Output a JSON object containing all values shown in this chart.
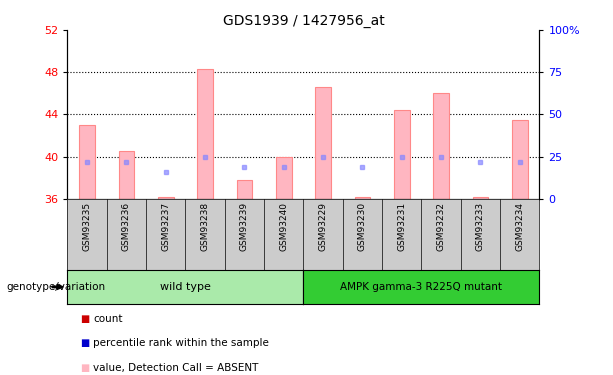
{
  "title": "GDS1939 / 1427956_at",
  "samples": [
    "GSM93235",
    "GSM93236",
    "GSM93237",
    "GSM93238",
    "GSM93239",
    "GSM93240",
    "GSM93229",
    "GSM93230",
    "GSM93231",
    "GSM93232",
    "GSM93233",
    "GSM93234"
  ],
  "bar_values": [
    43.0,
    40.5,
    36.2,
    48.3,
    37.8,
    40.0,
    46.6,
    36.2,
    44.4,
    46.0,
    36.2,
    43.5
  ],
  "rank_values": [
    39.5,
    39.5,
    38.5,
    40.0,
    39.0,
    39.0,
    40.0,
    39.0,
    40.0,
    40.0,
    39.5,
    39.5
  ],
  "ylim_left": [
    36,
    52
  ],
  "ylim_right": [
    0,
    100
  ],
  "yticks_left": [
    36,
    40,
    44,
    48,
    52
  ],
  "yticks_right": [
    0,
    25,
    50,
    75,
    100
  ],
  "ytick_labels_right": [
    "0",
    "25",
    "50",
    "75",
    "100%"
  ],
  "bar_color": "#FFB6C1",
  "bar_edge_color": "#FF8888",
  "rank_color": "#8888FF",
  "rank_alpha": 0.7,
  "dotted_line_values": [
    40,
    44,
    48
  ],
  "wild_type_label": "wild type",
  "mutant_label": "AMPK gamma-3 R225Q mutant",
  "group_label": "genotype/variation",
  "wild_type_color": "#AAEAAA",
  "mutant_color": "#33CC33",
  "bar_bottom": 36,
  "legend_count_color": "#CC0000",
  "legend_rank_color": "#0000CC",
  "legend_bar_color": "#FFB6C1",
  "legend_rank_absent_color": "#AAAAFF",
  "xtick_bg_color": "#CCCCCC",
  "plot_bg_color": "#FFFFFF"
}
